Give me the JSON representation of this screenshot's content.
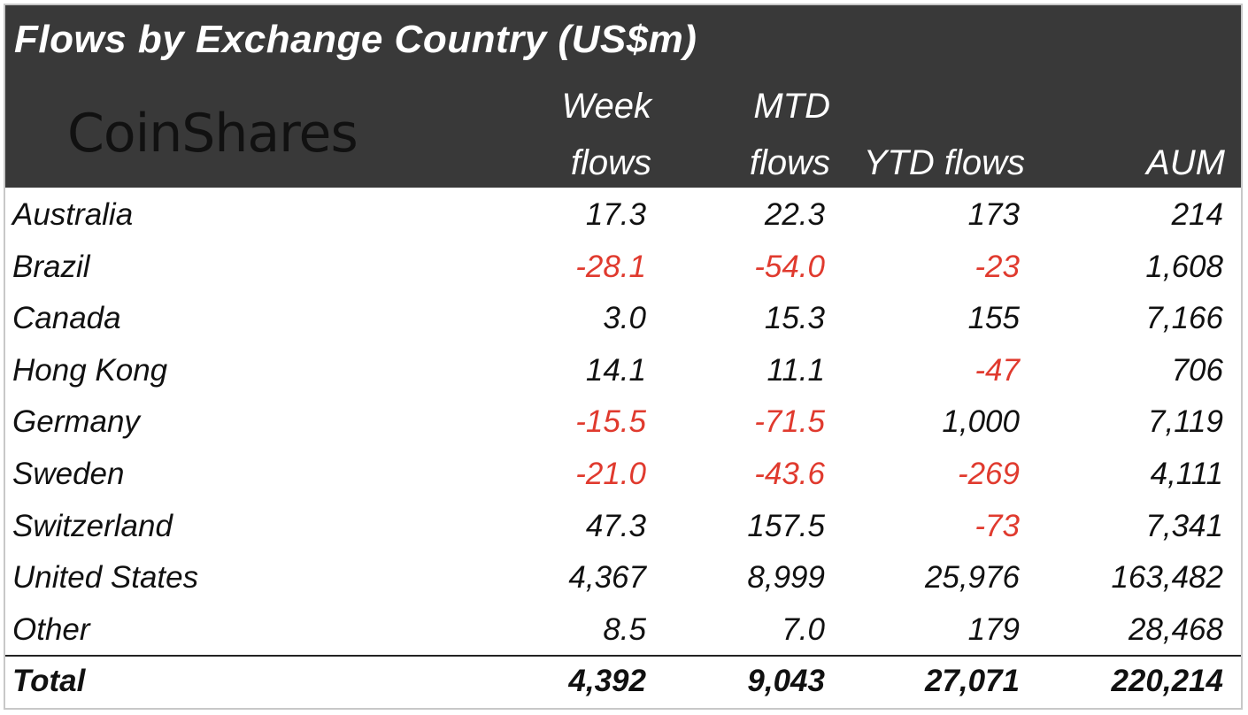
{
  "header": {
    "title": "Flows by Exchange Country (US$m)",
    "logo": "CoinShares",
    "col_week_1": "Week",
    "col_week_2": "flows",
    "col_mtd_1": "MTD",
    "col_mtd_2": "flows",
    "col_ytd": "YTD flows",
    "col_aum": "AUM"
  },
  "rows": [
    {
      "country": "Australia",
      "week": "17.3",
      "mtd": "22.3",
      "ytd": "173",
      "aum": "214"
    },
    {
      "country": "Brazil",
      "week": "-28.1",
      "mtd": "-54.0",
      "ytd": "-23",
      "aum": "1,608"
    },
    {
      "country": "Canada",
      "week": "3.0",
      "mtd": "15.3",
      "ytd": "155",
      "aum": "7,166"
    },
    {
      "country": "Hong Kong",
      "week": "14.1",
      "mtd": "11.1",
      "ytd": "-47",
      "aum": "706"
    },
    {
      "country": "Germany",
      "week": "-15.5",
      "mtd": "-71.5",
      "ytd": "1,000",
      "aum": "7,119"
    },
    {
      "country": "Sweden",
      "week": "-21.0",
      "mtd": "-43.6",
      "ytd": "-269",
      "aum": "4,111"
    },
    {
      "country": "Switzerland",
      "week": "47.3",
      "mtd": "157.5",
      "ytd": "-73",
      "aum": "7,341"
    },
    {
      "country": "United States",
      "week": "4,367",
      "mtd": "8,999",
      "ytd": "25,976",
      "aum": "163,482"
    },
    {
      "country": "Other",
      "week": "8.5",
      "mtd": "7.0",
      "ytd": "179",
      "aum": "28,468"
    }
  ],
  "total": {
    "country": "Total",
    "week": "4,392",
    "mtd": "9,043",
    "ytd": "27,071",
    "aum": "220,214"
  },
  "colors": {
    "header_bg": "#393939",
    "negative": "#e03a2e",
    "text": "#111111"
  },
  "chart_data": {
    "type": "table",
    "title": "Flows by Exchange Country (US$m)",
    "columns": [
      "Week flows",
      "MTD flows",
      "YTD flows",
      "AUM"
    ],
    "categories": [
      "Australia",
      "Brazil",
      "Canada",
      "Hong Kong",
      "Germany",
      "Sweden",
      "Switzerland",
      "United States",
      "Other",
      "Total"
    ],
    "series": [
      {
        "name": "Week flows",
        "values": [
          17.3,
          -28.1,
          3.0,
          14.1,
          -15.5,
          -21.0,
          47.3,
          4367,
          8.5,
          4392
        ]
      },
      {
        "name": "MTD flows",
        "values": [
          22.3,
          -54.0,
          15.3,
          11.1,
          -71.5,
          -43.6,
          157.5,
          8999,
          7.0,
          9043
        ]
      },
      {
        "name": "YTD flows",
        "values": [
          173,
          -23,
          155,
          -47,
          1000,
          -269,
          -73,
          25976,
          179,
          27071
        ]
      },
      {
        "name": "AUM",
        "values": [
          214,
          1608,
          7166,
          706,
          7119,
          4111,
          7341,
          163482,
          28468,
          220214
        ]
      }
    ]
  }
}
